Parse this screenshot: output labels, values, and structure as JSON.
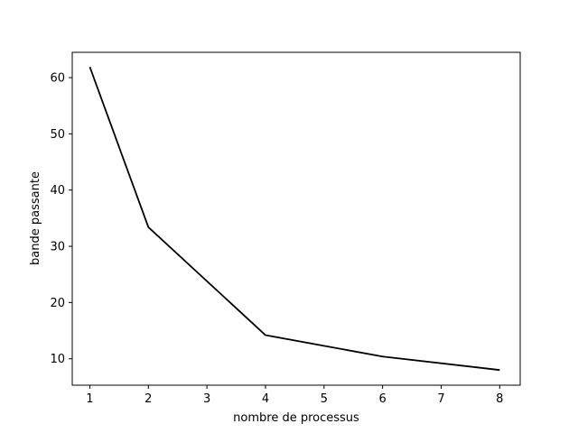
{
  "chart_data": {
    "type": "line",
    "title": "",
    "xlabel": "nombre de processus",
    "ylabel": "bande passante",
    "x": [
      1,
      2,
      4,
      6,
      8
    ],
    "series": [
      {
        "values": [
          61.9,
          33.4,
          14.2,
          10.4,
          8.0
        ],
        "color": "#000000"
      }
    ],
    "xlim": [
      0.7,
      8.35
    ],
    "ylim": [
      5.3,
      64.5
    ],
    "xticks": [
      1,
      2,
      3,
      4,
      5,
      6,
      7,
      8
    ],
    "yticks": [
      10,
      20,
      30,
      40,
      50,
      60
    ],
    "grid": false,
    "legend": "none"
  }
}
